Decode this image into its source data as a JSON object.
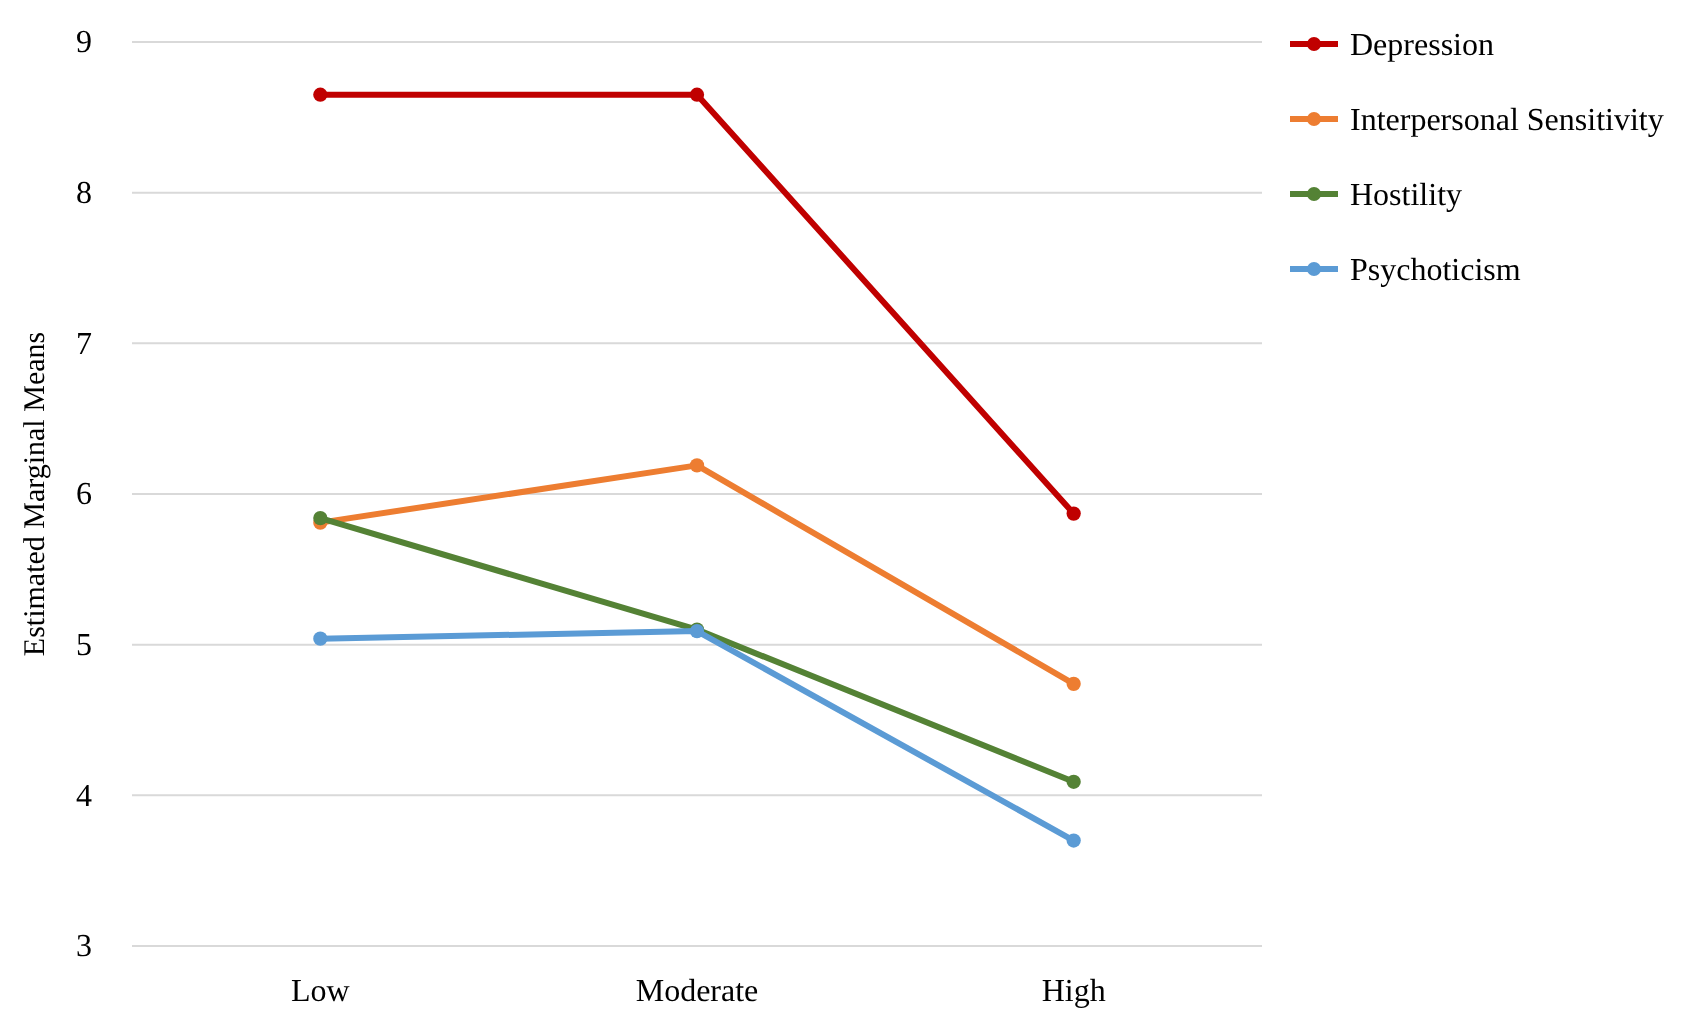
{
  "chart_data": {
    "type": "line",
    "ylabel": "Estimated Marginal Means",
    "categories": [
      "Low",
      "Moderate",
      "High"
    ],
    "series": [
      {
        "name": "Depression",
        "color": "#c00000",
        "values": [
          8.65,
          8.65,
          5.87
        ]
      },
      {
        "name": "Interpersonal Sensitivity",
        "color": "#ed7d31",
        "values": [
          5.81,
          6.19,
          4.74
        ]
      },
      {
        "name": "Hostility",
        "color": "#548235",
        "values": [
          5.84,
          5.1,
          4.09
        ]
      },
      {
        "name": "Psychoticism",
        "color": "#5b9bd5",
        "values": [
          5.04,
          5.09,
          3.7
        ]
      }
    ],
    "ylim": [
      3,
      9
    ],
    "yticks": [
      3,
      4,
      5,
      6,
      7,
      8,
      9
    ],
    "grid": "y",
    "legend": "right",
    "marker": "circle",
    "line_style": "solid"
  }
}
